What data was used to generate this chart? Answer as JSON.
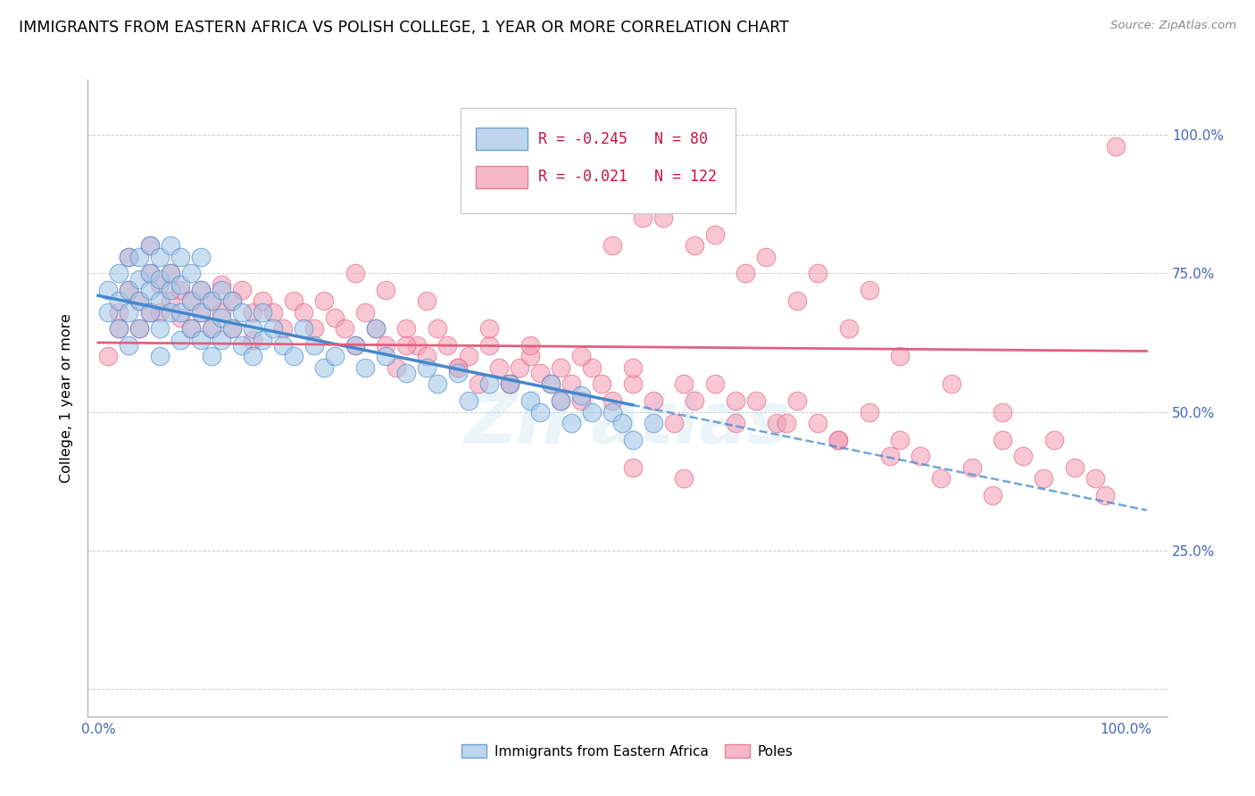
{
  "title": "IMMIGRANTS FROM EASTERN AFRICA VS POLISH COLLEGE, 1 YEAR OR MORE CORRELATION CHART",
  "source": "Source: ZipAtlas.com",
  "ylabel": "College, 1 year or more",
  "legend1_label": "Immigrants from Eastern Africa",
  "legend2_label": "Poles",
  "R1": -0.245,
  "N1": 80,
  "R2": -0.021,
  "N2": 122,
  "color_blue": "#a8c8e8",
  "color_pink": "#f4a0b8",
  "line_blue": "#4488cc",
  "line_pink": "#e06080",
  "watermark": "ZIPatlas",
  "blue_scatter_x": [
    0.01,
    0.01,
    0.02,
    0.02,
    0.02,
    0.03,
    0.03,
    0.03,
    0.03,
    0.04,
    0.04,
    0.04,
    0.04,
    0.05,
    0.05,
    0.05,
    0.05,
    0.06,
    0.06,
    0.06,
    0.06,
    0.06,
    0.07,
    0.07,
    0.07,
    0.07,
    0.08,
    0.08,
    0.08,
    0.08,
    0.09,
    0.09,
    0.09,
    0.1,
    0.1,
    0.1,
    0.1,
    0.11,
    0.11,
    0.11,
    0.12,
    0.12,
    0.12,
    0.13,
    0.13,
    0.14,
    0.14,
    0.15,
    0.15,
    0.16,
    0.16,
    0.17,
    0.18,
    0.19,
    0.2,
    0.21,
    0.22,
    0.23,
    0.25,
    0.26,
    0.27,
    0.28,
    0.3,
    0.32,
    0.33,
    0.35,
    0.36,
    0.38,
    0.4,
    0.42,
    0.43,
    0.44,
    0.45,
    0.46,
    0.47,
    0.48,
    0.5,
    0.51,
    0.52,
    0.54
  ],
  "blue_scatter_y": [
    0.68,
    0.72,
    0.65,
    0.7,
    0.75,
    0.68,
    0.72,
    0.78,
    0.62,
    0.7,
    0.74,
    0.78,
    0.65,
    0.72,
    0.75,
    0.8,
    0.68,
    0.7,
    0.74,
    0.78,
    0.65,
    0.6,
    0.72,
    0.68,
    0.75,
    0.8,
    0.73,
    0.68,
    0.63,
    0.78,
    0.7,
    0.65,
    0.75,
    0.72,
    0.68,
    0.63,
    0.78,
    0.7,
    0.65,
    0.6,
    0.72,
    0.67,
    0.63,
    0.7,
    0.65,
    0.68,
    0.62,
    0.65,
    0.6,
    0.68,
    0.63,
    0.65,
    0.62,
    0.6,
    0.65,
    0.62,
    0.58,
    0.6,
    0.62,
    0.58,
    0.65,
    0.6,
    0.57,
    0.58,
    0.55,
    0.57,
    0.52,
    0.55,
    0.55,
    0.52,
    0.5,
    0.55,
    0.52,
    0.48,
    0.53,
    0.5,
    0.5,
    0.48,
    0.45,
    0.48
  ],
  "pink_scatter_x": [
    0.01,
    0.02,
    0.02,
    0.03,
    0.03,
    0.04,
    0.04,
    0.05,
    0.05,
    0.05,
    0.06,
    0.06,
    0.07,
    0.07,
    0.08,
    0.08,
    0.09,
    0.09,
    0.1,
    0.1,
    0.11,
    0.11,
    0.12,
    0.12,
    0.13,
    0.13,
    0.14,
    0.15,
    0.15,
    0.16,
    0.17,
    0.18,
    0.19,
    0.2,
    0.21,
    0.22,
    0.23,
    0.24,
    0.25,
    0.26,
    0.27,
    0.28,
    0.29,
    0.3,
    0.31,
    0.32,
    0.33,
    0.34,
    0.35,
    0.36,
    0.37,
    0.38,
    0.39,
    0.4,
    0.41,
    0.42,
    0.43,
    0.44,
    0.45,
    0.46,
    0.47,
    0.48,
    0.49,
    0.5,
    0.52,
    0.54,
    0.56,
    0.58,
    0.6,
    0.62,
    0.64,
    0.66,
    0.68,
    0.7,
    0.72,
    0.75,
    0.78,
    0.8,
    0.85,
    0.88,
    0.9,
    0.92,
    0.95,
    0.97,
    0.98,
    0.99,
    0.3,
    0.35,
    0.4,
    0.45,
    0.25,
    0.28,
    0.32,
    0.38,
    0.42,
    0.47,
    0.52,
    0.57,
    0.62,
    0.67,
    0.72,
    0.77,
    0.82,
    0.87,
    0.5,
    0.55,
    0.6,
    0.65,
    0.7,
    0.75,
    0.48,
    0.53,
    0.58,
    0.63,
    0.68,
    0.73,
    0.78,
    0.83,
    0.88,
    0.93,
    0.52,
    0.57
  ],
  "pink_scatter_y": [
    0.6,
    0.68,
    0.65,
    0.72,
    0.78,
    0.7,
    0.65,
    0.75,
    0.68,
    0.8,
    0.73,
    0.68,
    0.75,
    0.7,
    0.72,
    0.67,
    0.7,
    0.65,
    0.72,
    0.68,
    0.7,
    0.65,
    0.68,
    0.73,
    0.7,
    0.65,
    0.72,
    0.68,
    0.63,
    0.7,
    0.68,
    0.65,
    0.7,
    0.68,
    0.65,
    0.7,
    0.67,
    0.65,
    0.62,
    0.68,
    0.65,
    0.62,
    0.58,
    0.65,
    0.62,
    0.6,
    0.65,
    0.62,
    0.58,
    0.6,
    0.55,
    0.62,
    0.58,
    0.55,
    0.58,
    0.6,
    0.57,
    0.55,
    0.58,
    0.55,
    0.52,
    0.58,
    0.55,
    0.52,
    0.55,
    0.52,
    0.48,
    0.52,
    0.55,
    0.48,
    0.52,
    0.48,
    0.52,
    0.48,
    0.45,
    0.5,
    0.45,
    0.42,
    0.4,
    0.45,
    0.42,
    0.38,
    0.4,
    0.38,
    0.35,
    0.98,
    0.62,
    0.58,
    0.55,
    0.52,
    0.75,
    0.72,
    0.7,
    0.65,
    0.62,
    0.6,
    0.58,
    0.55,
    0.52,
    0.48,
    0.45,
    0.42,
    0.38,
    0.35,
    0.8,
    0.85,
    0.82,
    0.78,
    0.75,
    0.72,
    0.88,
    0.85,
    0.8,
    0.75,
    0.7,
    0.65,
    0.6,
    0.55,
    0.5,
    0.45,
    0.4,
    0.38
  ]
}
